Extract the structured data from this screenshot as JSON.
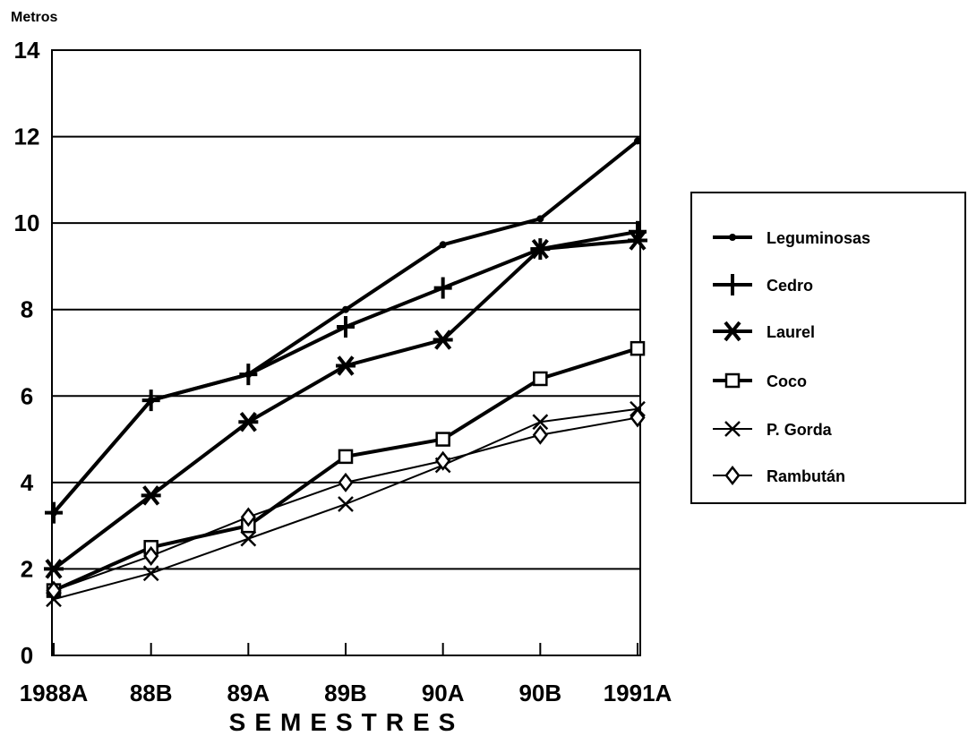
{
  "chart_data": {
    "type": "line",
    "ylabel": "Metros",
    "xlabel": "SEMESTRES",
    "categories": [
      "1988A",
      "88B",
      "89A",
      "89B",
      "90A",
      "90B",
      "1991A"
    ],
    "ylim": [
      0,
      14
    ],
    "yticks": [
      0,
      2,
      4,
      6,
      8,
      10,
      12,
      14
    ],
    "grid": "horizontal",
    "legend_position": "right",
    "series": [
      {
        "name": "Leguminosas",
        "marker": "dot",
        "stroke": 4,
        "values": [
          3.3,
          5.9,
          6.5,
          8.0,
          9.5,
          10.1,
          11.9
        ]
      },
      {
        "name": "Cedro",
        "marker": "plus",
        "stroke": 4,
        "values": [
          3.3,
          5.9,
          6.5,
          7.6,
          8.5,
          9.4,
          9.8
        ]
      },
      {
        "name": "Laurel",
        "marker": "asterisk",
        "stroke": 4,
        "values": [
          2.0,
          3.7,
          5.4,
          6.7,
          7.3,
          9.4,
          9.6
        ]
      },
      {
        "name": "Coco",
        "marker": "square",
        "stroke": 4,
        "values": [
          1.5,
          2.5,
          3.0,
          4.6,
          5.0,
          6.4,
          7.1
        ]
      },
      {
        "name": "P. Gorda",
        "marker": "x",
        "stroke": 2,
        "values": [
          1.3,
          1.9,
          2.7,
          3.5,
          4.4,
          5.4,
          5.7
        ]
      },
      {
        "name": "Rambután",
        "marker": "diamond",
        "stroke": 2,
        "values": [
          1.5,
          2.3,
          3.2,
          4.0,
          4.5,
          5.1,
          5.5
        ]
      }
    ]
  }
}
